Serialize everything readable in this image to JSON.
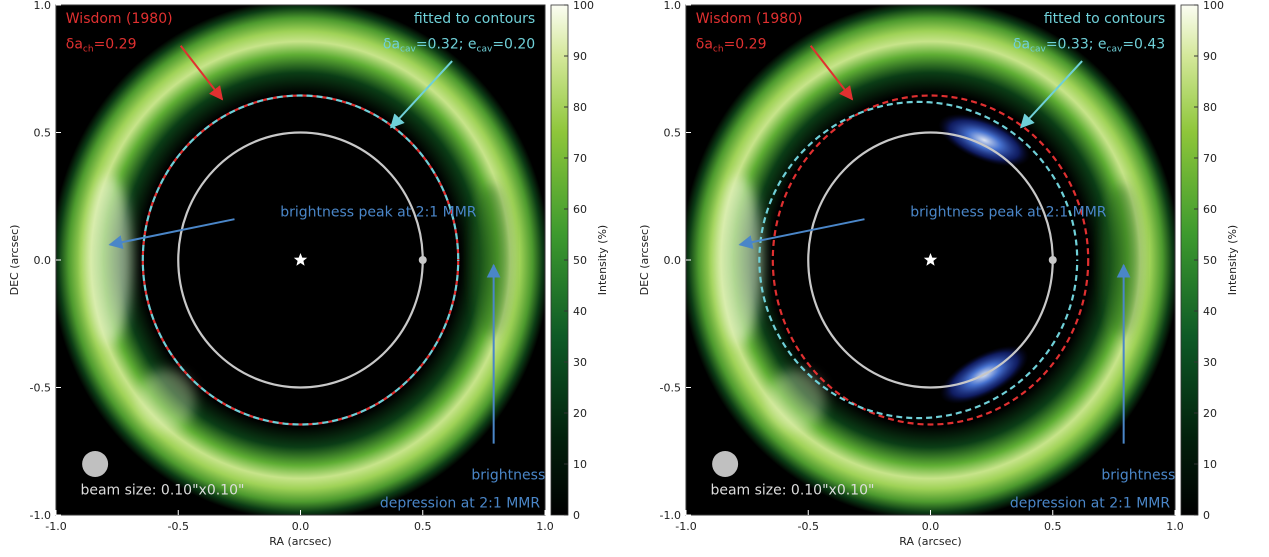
{
  "chart_data": [
    {
      "type": "heatmap",
      "xlabel": "RA (arcsec)",
      "ylabel": "DEC (arcsec)",
      "xlim": [
        -1.0,
        1.0
      ],
      "ylim": [
        -1.0,
        1.0
      ],
      "x_ticks": [
        "-1.0",
        "-0.5",
        "0.0",
        "0.5",
        "1.0"
      ],
      "y_ticks": [
        "-1.0",
        "-0.5",
        "0.0",
        "0.5",
        "1.0"
      ],
      "colorbar": {
        "label": "Intensity (%)",
        "range": [
          0,
          100
        ],
        "ticks": [
          "0",
          "10",
          "20",
          "30",
          "40",
          "50",
          "60",
          "70",
          "80",
          "90",
          "100"
        ]
      },
      "star": [
        0.0,
        0.0
      ],
      "planet": [
        0.5,
        0.0
      ],
      "planet_orbit_radius": 0.5,
      "chaotic_zone_radius": 0.645,
      "fitted_cavity": {
        "radius": 0.645,
        "center_offset_x": 0.0
      },
      "blue_arcs": false,
      "annotations": {
        "wisdom_title": "Wisdom (1980)",
        "wisdom_symbol": "δa",
        "wisdom_sub": "ch",
        "wisdom_value": "=0.29",
        "fit_title": "fitted to contours",
        "fit_a_symbol": "δa",
        "fit_a_sub": "cav",
        "fit_a_value": "=0.32; e",
        "fit_e_sub": "cav",
        "fit_e_value": "=0.20",
        "peak": "brightness peak at 2:1 MMR",
        "dep_line1": "brightness",
        "dep_line2": "depression at 2:1 MMR",
        "beam": "beam size: 0.10\"x0.10\""
      }
    },
    {
      "type": "heatmap",
      "xlabel": "RA (arcsec)",
      "ylabel": "DEC (arcsec)",
      "xlim": [
        -1.0,
        1.0
      ],
      "ylim": [
        -1.0,
        1.0
      ],
      "x_ticks": [
        "-1.0",
        "-0.5",
        "0.0",
        "0.5",
        "1.0"
      ],
      "y_ticks": [
        "-1.0",
        "-0.5",
        "0.0",
        "0.5",
        "1.0"
      ],
      "colorbar": {
        "label": "Intensity (%)",
        "range": [
          0,
          100
        ],
        "ticks": [
          "0",
          "10",
          "20",
          "30",
          "40",
          "50",
          "60",
          "70",
          "80",
          "90",
          "100"
        ]
      },
      "star": [
        0.0,
        0.0
      ],
      "planet": [
        0.5,
        0.0
      ],
      "planet_orbit_radius": 0.5,
      "chaotic_zone_radius": 0.645,
      "fitted_cavity": {
        "radius": 0.62,
        "center_offset_x": -0.05
      },
      "blue_arcs": true,
      "annotations": {
        "wisdom_title": "Wisdom (1980)",
        "wisdom_symbol": "δa",
        "wisdom_sub": "ch",
        "wisdom_value": "=0.29",
        "fit_title": "fitted to contours",
        "fit_a_symbol": "δa",
        "fit_a_sub": "cav",
        "fit_a_value": "=0.33; e",
        "fit_e_sub": "cav",
        "fit_e_value": "=0.43",
        "peak": "brightness peak at 2:1 MMR",
        "dep_line1": "brightness",
        "dep_line2": "depression at 2:1 MMR",
        "beam": "beam size: 0.10\"x0.10\""
      }
    }
  ],
  "colors": {
    "wisdom": "#e03030",
    "fit": "#6fd0d8",
    "annotation_arrow": "#4a86c8",
    "orbit": "#c8c8c8",
    "background": "#000000"
  }
}
